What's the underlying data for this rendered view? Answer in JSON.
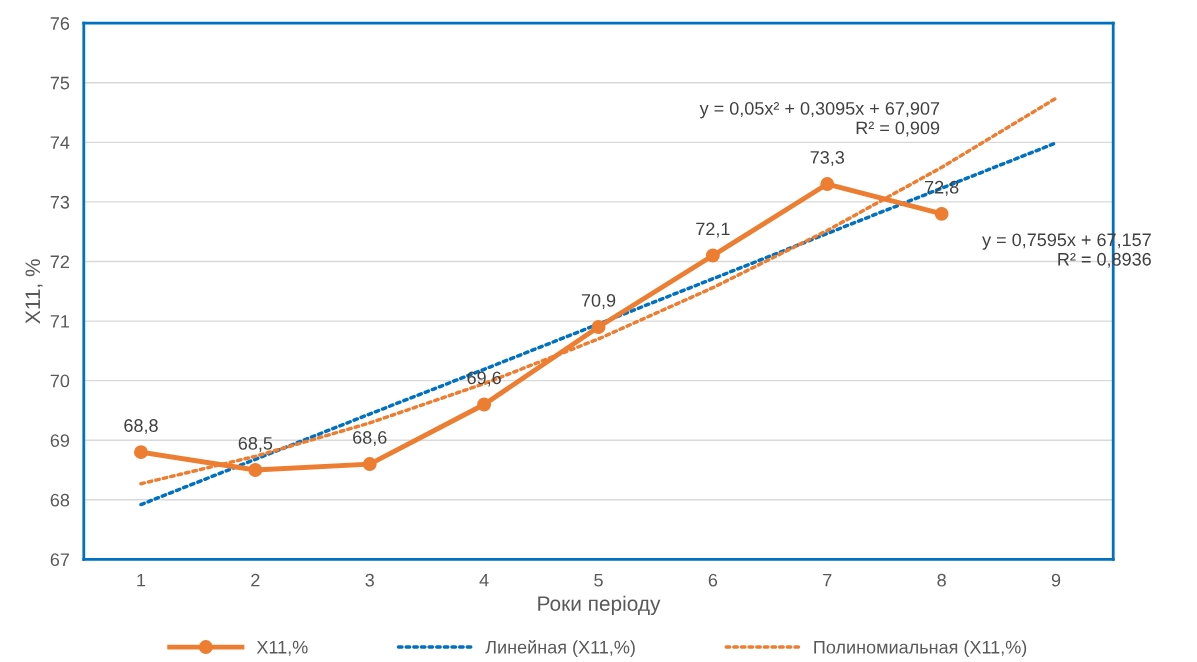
{
  "chart_data": {
    "type": "line",
    "xlabel": "Роки періоду",
    "ylabel": "X11, %",
    "categories": [
      "1",
      "2",
      "3",
      "4",
      "5",
      "6",
      "7",
      "8",
      "9"
    ],
    "series": [
      {
        "name": "X11,%",
        "color": "#ed7d31",
        "values": [
          68.8,
          68.5,
          68.6,
          69.6,
          70.9,
          72.1,
          73.3,
          72.8,
          null
        ],
        "value_labels": [
          "68,8",
          "68,5",
          "68,6",
          "69,6",
          "70,9",
          "72,1",
          "73,3",
          "72,8",
          null
        ],
        "marker": "circle",
        "line_style": "solid"
      },
      {
        "name": "Линейная (X11,%)",
        "color": "#0070c0",
        "values": [
          67.92,
          68.68,
          69.44,
          70.19,
          70.95,
          71.71,
          72.47,
          73.23,
          73.99
        ],
        "marker": "none",
        "line_style": "dotted"
      },
      {
        "name": "Полиномиальная (X11,%)",
        "color": "#ed7d31",
        "values": [
          68.27,
          68.73,
          69.29,
          69.95,
          70.7,
          71.56,
          72.52,
          73.58,
          74.74
        ],
        "marker": "none",
        "line_style": "dotted"
      }
    ],
    "annotations": [
      "y = 0,05x² + 0,3095x + 67,907\nR² = 0,909",
      "y = 0,7595x + 67,157\nR² = 0,8936"
    ],
    "ylim": [
      67,
      76
    ],
    "yticks": [
      67,
      68,
      69,
      70,
      71,
      72,
      73,
      74,
      75,
      76
    ],
    "grid": "y",
    "legend": "bottom"
  }
}
